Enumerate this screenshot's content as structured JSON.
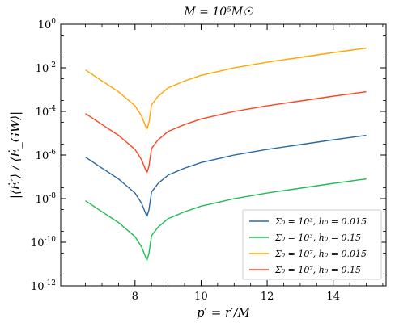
{
  "chart_data": {
    "type": "line",
    "title": "M = 10⁵M☉",
    "xlabel": "p′ = r′/M",
    "ylabel": "|⟨Ė′⟩ / ⟨Ė_GW⟩|",
    "xlim": [
      5.75,
      15.6
    ],
    "ylim": [
      1e-12,
      1
    ],
    "yscale": "log",
    "x_ticks": [
      8,
      10,
      12,
      14
    ],
    "x_tick_labels": [
      "8",
      "10",
      "12",
      "14"
    ],
    "y_ticks": [
      1e-12,
      1e-10,
      1e-08,
      1e-06,
      0.0001,
      0.01,
      1
    ],
    "y_tick_labels": [
      {
        "base": "10",
        "exp": "-12"
      },
      {
        "base": "10",
        "exp": "-10"
      },
      {
        "base": "10",
        "exp": "-8"
      },
      {
        "base": "10",
        "exp": "-6"
      },
      {
        "base": "10",
        "exp": "-4"
      },
      {
        "base": "10",
        "exp": "-2"
      },
      {
        "base": "10",
        "exp": "0"
      }
    ],
    "grid": false,
    "legend_position": "bottom-right",
    "series": [
      {
        "name": "Σ₀ = 10³, h₀ = 0.015",
        "color": "#2b6aa6",
        "x": [
          6.5,
          7.0,
          7.5,
          8.0,
          8.2,
          8.3,
          8.36,
          8.42,
          8.5,
          8.7,
          9.0,
          9.5,
          10.0,
          11.0,
          12.0,
          13.0,
          14.0,
          15.0
        ],
        "y": [
          8e-07,
          2.5e-07,
          8e-08,
          1.8e-08,
          6e-09,
          2.5e-09,
          1.5e-09,
          3e-09,
          2e-08,
          5e-08,
          1.2e-07,
          2.5e-07,
          4.5e-07,
          1e-06,
          1.8e-06,
          3e-06,
          5e-06,
          8e-06
        ]
      },
      {
        "name": "Σ₀ = 10³, h₀ = 0.15",
        "color": "#22bb55",
        "x": [
          6.5,
          7.0,
          7.5,
          8.0,
          8.2,
          8.3,
          8.36,
          8.42,
          8.5,
          8.7,
          9.0,
          9.5,
          10.0,
          11.0,
          12.0,
          13.0,
          14.0,
          15.0
        ],
        "y": [
          8e-09,
          2.5e-09,
          8e-10,
          1.8e-10,
          6e-11,
          2.5e-11,
          1.5e-11,
          3e-11,
          2e-10,
          5e-10,
          1.2e-09,
          2.5e-09,
          4.5e-09,
          1e-08,
          1.8e-08,
          3e-08,
          5e-08,
          8e-08
        ]
      },
      {
        "name": "Σ₀ = 10⁷, h₀ = 0.015",
        "color": "#ffa500",
        "x": [
          6.5,
          7.0,
          7.5,
          8.0,
          8.2,
          8.3,
          8.36,
          8.42,
          8.5,
          8.7,
          9.0,
          9.5,
          10.0,
          11.0,
          12.0,
          13.0,
          14.0,
          15.0
        ],
        "y": [
          0.008,
          0.0025,
          0.0008,
          0.00018,
          6e-05,
          2.5e-05,
          1.5e-05,
          3e-05,
          0.0002,
          0.0005,
          0.0012,
          0.0025,
          0.0045,
          0.01,
          0.018,
          0.03,
          0.05,
          0.08
        ]
      },
      {
        "name": "Σ₀ = 10⁷, h₀ = 0.15",
        "color": "#ff4422",
        "x": [
          6.5,
          7.0,
          7.5,
          8.0,
          8.2,
          8.3,
          8.36,
          8.42,
          8.5,
          8.7,
          9.0,
          9.5,
          10.0,
          11.0,
          12.0,
          13.0,
          14.0,
          15.0
        ],
        "y": [
          8e-05,
          2.5e-05,
          8e-06,
          1.8e-06,
          6e-07,
          2.5e-07,
          1.5e-07,
          3e-07,
          2e-06,
          5e-06,
          1.2e-05,
          2.5e-05,
          4.5e-05,
          0.0001,
          0.00018,
          0.0003,
          0.0005,
          0.0008
        ]
      }
    ]
  }
}
